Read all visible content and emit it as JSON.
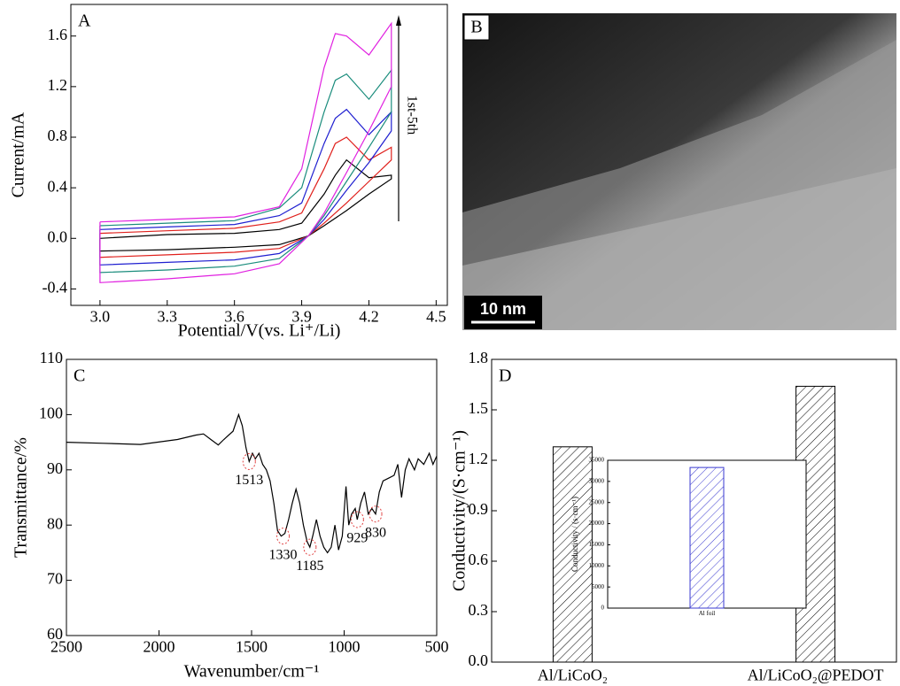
{
  "chart_data": [
    {
      "type": "line",
      "label": "A",
      "xlabel": "Potential/V(vs. Li⁺/Li)",
      "ylabel": "Current/mA",
      "annotation": "1st-5th",
      "x": [
        3.0,
        3.3,
        3.6,
        3.8,
        3.9,
        4.0,
        4.05,
        4.1,
        4.2,
        4.3,
        4.3,
        4.2,
        4.1,
        4.0,
        3.93,
        3.8,
        3.6,
        3.3,
        3.0,
        3.0
      ],
      "series": [
        {
          "color": "#000000",
          "values": [
            0.0,
            0.03,
            0.04,
            0.07,
            0.12,
            0.35,
            0.5,
            0.62,
            0.48,
            0.5,
            0.47,
            0.35,
            0.22,
            0.1,
            0.02,
            -0.05,
            -0.07,
            -0.09,
            -0.1,
            0.0
          ]
        },
        {
          "color": "#e0201c",
          "values": [
            0.04,
            0.06,
            0.08,
            0.13,
            0.2,
            0.55,
            0.75,
            0.8,
            0.62,
            0.72,
            0.62,
            0.45,
            0.28,
            0.12,
            0.02,
            -0.08,
            -0.11,
            -0.13,
            -0.15,
            0.04
          ]
        },
        {
          "color": "#1f1fd0",
          "values": [
            0.07,
            0.09,
            0.11,
            0.18,
            0.28,
            0.75,
            0.95,
            1.02,
            0.82,
            1.0,
            0.85,
            0.6,
            0.38,
            0.15,
            0.02,
            -0.12,
            -0.17,
            -0.19,
            -0.21,
            0.07
          ]
        },
        {
          "color": "#1a8c7c",
          "values": [
            0.1,
            0.12,
            0.14,
            0.24,
            0.4,
            1.0,
            1.25,
            1.3,
            1.1,
            1.33,
            1.0,
            0.72,
            0.45,
            0.18,
            0.02,
            -0.16,
            -0.22,
            -0.25,
            -0.27,
            0.1
          ]
        },
        {
          "color": "#e020e0",
          "values": [
            0.13,
            0.15,
            0.17,
            0.25,
            0.55,
            1.35,
            1.62,
            1.6,
            1.45,
            1.7,
            1.2,
            0.85,
            0.52,
            0.2,
            0.02,
            -0.2,
            -0.28,
            -0.32,
            -0.35,
            0.13
          ]
        }
      ],
      "xlim": [
        2.87,
        4.55
      ],
      "xticks": [
        {
          "value": 3,
          "label": "3.0"
        },
        3.3,
        3.6,
        3.9,
        4.2,
        4.5
      ],
      "ylim": [
        -0.53,
        1.85
      ],
      "yticks": [
        -0.4,
        {
          "value": 0,
          "label": "0.0"
        },
        0.4,
        0.8,
        1.2,
        1.6
      ]
    },
    {
      "type": "image",
      "label": "B",
      "scale_bar": "10 nm"
    },
    {
      "type": "line",
      "label": "C",
      "xlabel": "Wavenumber/cm⁻¹",
      "ylabel": "Transmittance/%",
      "color": "#000000",
      "x": [
        2500,
        2300,
        2100,
        1900,
        1800,
        1760,
        1720,
        1680,
        1650,
        1600,
        1570,
        1550,
        1530,
        1513,
        1495,
        1480,
        1460,
        1440,
        1420,
        1400,
        1380,
        1360,
        1340,
        1320,
        1300,
        1280,
        1260,
        1240,
        1220,
        1200,
        1185,
        1170,
        1150,
        1130,
        1110,
        1090,
        1070,
        1050,
        1030,
        1010,
        990,
        975,
        960,
        940,
        929,
        910,
        890,
        870,
        850,
        830,
        810,
        790,
        760,
        730,
        710,
        690,
        670,
        650,
        620,
        600,
        570,
        540,
        520,
        500
      ],
      "values": [
        95,
        94.8,
        94.6,
        95.5,
        96.3,
        96.5,
        95.5,
        94.5,
        95.5,
        97,
        100,
        98,
        94,
        91.5,
        93,
        92,
        93,
        91,
        90,
        88,
        84,
        79,
        78,
        78.5,
        81,
        84,
        86.5,
        84,
        80,
        77,
        76,
        78,
        81,
        78,
        76,
        75,
        76,
        80,
        75.5,
        78,
        87,
        80,
        82,
        83,
        81,
        84,
        86,
        82,
        83,
        82,
        86,
        88,
        88.5,
        89,
        91,
        85,
        90,
        92,
        90,
        92,
        91,
        93,
        91,
        92.5
      ],
      "xlim": [
        2500,
        500
      ],
      "xticks": [
        2500,
        2000,
        1500,
        1000,
        500
      ],
      "ylim": [
        60,
        110
      ],
      "yticks": [
        60,
        70,
        80,
        90,
        100,
        110
      ],
      "annotations": [
        {
          "text": "1513",
          "x": 1513,
          "y": 91.5
        },
        {
          "text": "1330",
          "x": 1330,
          "y": 78
        },
        {
          "text": "1185",
          "x": 1185,
          "y": 76
        },
        {
          "text": "929",
          "x": 929,
          "y": 81
        },
        {
          "text": "830",
          "x": 830,
          "y": 82
        }
      ]
    },
    {
      "type": "bar",
      "label": "D",
      "ylabel": "Conductivity/(S·cm⁻¹)",
      "categories": [
        "Al/LiCoO₂",
        "Al/LiCoO₂@PEDOT"
      ],
      "values": [
        1.28,
        1.64
      ],
      "color": "#000000",
      "hatch": true,
      "ylim": [
        0,
        1.8
      ],
      "yticks": [
        {
          "value": 0,
          "label": "0.0"
        },
        0.3,
        0.6,
        0.9,
        1.2,
        1.5,
        1.8
      ],
      "inset": {
        "type": "bar",
        "ylabel": "Conductivity / (s·cm⁻¹)",
        "categories": [
          "Al foil"
        ],
        "values": [
          33300
        ],
        "color": "#3a3ad0",
        "hatch": true,
        "ylim": [
          0,
          35000
        ],
        "yticks": [
          0,
          5000,
          10000,
          15000,
          20000,
          25000,
          30000,
          35000
        ]
      }
    }
  ]
}
